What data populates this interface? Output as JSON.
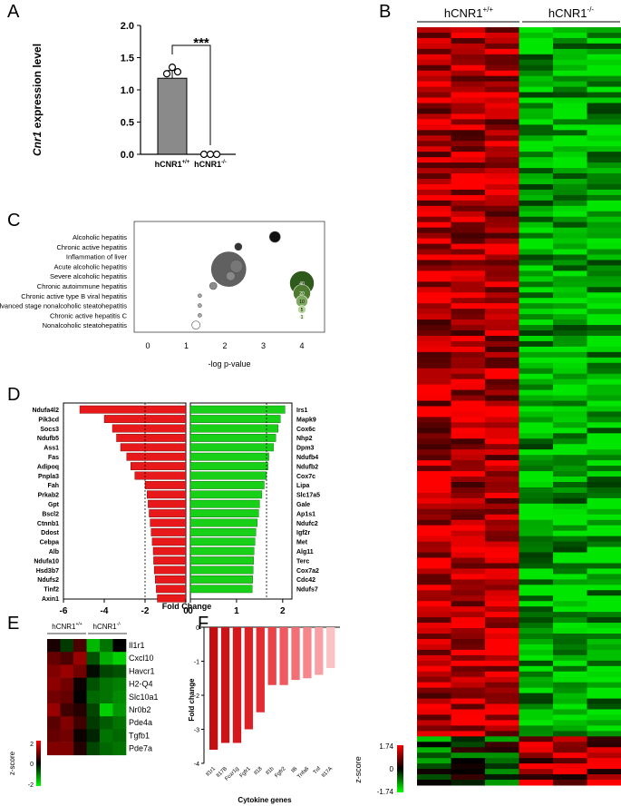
{
  "panels": {
    "A": "A",
    "B": "B",
    "C": "C",
    "D": "D",
    "E": "E",
    "F": "F"
  },
  "colors": {
    "red": "#e8191b",
    "green": "#19d019",
    "gray": "#8a8a8a",
    "dark_green": "#2e5a1c"
  },
  "panel_a": {
    "ylabel_italic": "Cnr1",
    "ylabel_rest": " expression level",
    "significance": "***",
    "yticks": [
      "0.0",
      "0.5",
      "1.0",
      "1.5",
      "2.0"
    ],
    "categories": [
      {
        "base": "hCNR1",
        "sup": "+/+"
      },
      {
        "base": "hCNR1",
        "sup": "-/-"
      }
    ]
  },
  "panel_b": {
    "groups": [
      {
        "base": "hCNR1",
        "sup": "+/+"
      },
      {
        "base": "hCNR1",
        "sup": "-/-"
      }
    ],
    "scale_max": "1.74",
    "scale_mid": "0",
    "scale_min": "-1.74",
    "scale_label": "z-score"
  },
  "panel_c": {
    "terms": [
      "Alcoholic hepatitis",
      "Chronic active hepatitis",
      "Inflammation of liver",
      "Acute alcoholic hepatitis",
      "Severe alcoholic hepatitis",
      "Chronic autoimmune hepatitis",
      "Chronic active type B viral hepatitis",
      "Advanced stage nonalcoholic steatohepatitis",
      "Chronic active hepatitis C",
      "Nonalcoholic steatohepatitis"
    ],
    "xticks": [
      "0",
      "1",
      "2",
      "3",
      "4"
    ],
    "xlabel": "-log p-value",
    "size_legend": [
      "40",
      "20",
      "10",
      "5",
      "1"
    ]
  },
  "panel_d": {
    "xlabel": "Fold Change",
    "left_ticks": [
      "-6",
      "-4",
      "-2",
      "0"
    ],
    "right_ticks": [
      "0",
      "1",
      "2"
    ],
    "down_genes": [
      "Ndufa4l2",
      "Pik3cd",
      "Socs3",
      "Ndufb5",
      "Ass1",
      "Fas",
      "Adipoq",
      "Pnpla3",
      "Fah",
      "Prkab2",
      "Gpt",
      "Bscl2",
      "Ctnnb1",
      "Ddost",
      "Cebpa",
      "Alb",
      "Ndufa10",
      "Hsd3b7",
      "Ndufs2",
      "Tinf2",
      "Axin1"
    ],
    "up_genes": [
      "Irs1",
      "Mapk9",
      "Cox6c",
      "Nhp2",
      "Dpm3",
      "Ndufb4",
      "Ndufb2",
      "Cox7c",
      "Lipa",
      "Slc17a5",
      "Gale",
      "Ap1s1",
      "Ndufc2",
      "Igf2r",
      "Met",
      "Alg11",
      "Terc",
      "Cox7a2",
      "Cdc42",
      "Ndufs7"
    ]
  },
  "panel_e": {
    "groups": [
      {
        "base": "hCNR1",
        "sup": "+/+"
      },
      {
        "base": "hCNR1",
        "sup": "-/-"
      }
    ],
    "genes": [
      "Il1r1",
      "Cxcl10",
      "Havcr1",
      "H2-Q4",
      "Slc10a1",
      "Nr0b2",
      "Pde4a",
      "Tgfb1",
      "Pde7a"
    ],
    "scale_max": "2",
    "scale_mid": "0",
    "scale_min": "-2",
    "scale_label": "z-score"
  },
  "panel_f": {
    "ylabel": "Fold change",
    "xlabel": "Cytokine genes",
    "yticks": [
      "0",
      "-1",
      "-2",
      "-3",
      "-4"
    ],
    "ylim": [
      -4,
      0
    ]
  },
  "chart_data": [
    {
      "type": "bar",
      "panel": "A",
      "categories": [
        "hCNR1+/+",
        "hCNR1-/-"
      ],
      "values": [
        1.18,
        0.0
      ],
      "points": [
        [
          1.25,
          1.35,
          1.28
        ],
        [
          0.0,
          0.0,
          0.0
        ]
      ],
      "ylim": [
        0,
        2.0
      ]
    },
    {
      "type": "scatter",
      "panel": "C",
      "xlim": [
        0,
        4.5
      ],
      "points": [
        {
          "term": "Alcoholic hepatitis",
          "x": 3.3,
          "size": 12,
          "color": "#111111"
        },
        {
          "term": "Chronic active hepatitis",
          "x": 2.35,
          "size": 8,
          "color": "#333333"
        },
        {
          "term": "Inflammation of liver",
          "x": 2.1,
          "size": 38,
          "color": "#444444"
        },
        {
          "term": "Acute alcoholic hepatitis",
          "x": 2.3,
          "size": 14,
          "color": "#777777"
        },
        {
          "term": "Severe alcoholic hepatitis",
          "x": 2.15,
          "size": 10,
          "color": "#888888"
        },
        {
          "term": "Chronic autoimmune hepatitis",
          "x": 1.7,
          "size": 8,
          "color": "#8c8c8c"
        },
        {
          "term": "Chronic active type B viral hepatitis",
          "x": 1.35,
          "size": 4,
          "color": "#aaaaaa"
        },
        {
          "term": "Advanced stage nonalcoholic steatohepatitis",
          "x": 1.35,
          "size": 4,
          "color": "#aaaaaa"
        },
        {
          "term": "Chronic active hepatitis C",
          "x": 1.35,
          "size": 4,
          "color": "#aaaaaa"
        },
        {
          "term": "Nonalcoholic steatohepatitis",
          "x": 1.25,
          "size": 9,
          "color": "#ffffff"
        }
      ]
    },
    {
      "type": "bar",
      "panel": "D",
      "down_values": [
        -5.2,
        -4.0,
        -3.6,
        -3.4,
        -3.2,
        -2.9,
        -2.7,
        -2.5,
        -2.0,
        -1.9,
        -1.85,
        -1.8,
        -1.75,
        -1.7,
        -1.65,
        -1.6,
        -1.58,
        -1.55,
        -1.5,
        -1.45,
        -1.4
      ],
      "up_values": [
        2.05,
        1.95,
        1.9,
        1.85,
        1.8,
        1.7,
        1.68,
        1.65,
        1.6,
        1.55,
        1.5,
        1.48,
        1.45,
        1.42,
        1.4,
        1.38,
        1.37,
        1.36,
        1.35,
        1.34
      ],
      "left_xlim": [
        -6,
        0
      ],
      "right_xlim": [
        0,
        2.25
      ],
      "thresholds": [
        -2.0,
        1.65
      ]
    },
    {
      "type": "heatmap",
      "panel": "E",
      "zlim": [
        -2,
        2
      ],
      "rows": [
        [
          0.2,
          -0.5,
          0.6,
          -1.6,
          -1.0,
          0.0
        ],
        [
          0.8,
          0.6,
          1.2,
          -0.7,
          -1.5,
          -1.8
        ],
        [
          1.0,
          1.2,
          0.9,
          -0.1,
          -0.6,
          -0.7
        ],
        [
          1.1,
          0.9,
          0.1,
          -0.7,
          -1.0,
          -1.1
        ],
        [
          0.9,
          0.8,
          0.0,
          -0.9,
          -1.0,
          -1.2
        ],
        [
          1.2,
          0.5,
          0.3,
          -0.6,
          -1.8,
          -1.3
        ],
        [
          0.7,
          1.0,
          0.5,
          -0.5,
          -0.8,
          -1.0
        ],
        [
          0.8,
          0.9,
          0.1,
          -0.3,
          -1.0,
          -0.9
        ],
        [
          1.0,
          1.0,
          0.3,
          -0.6,
          -0.9,
          -1.0
        ]
      ]
    },
    {
      "type": "bar",
      "panel": "F",
      "categories": [
        "Il1r1",
        "Il17B",
        "Foxr1g",
        "Fgfr1",
        "Il18",
        "Il1b",
        "Fgfr2",
        "Il6",
        "Tnfa6",
        "Tnf",
        "Il17A"
      ],
      "values": [
        -3.6,
        -3.4,
        -3.4,
        -3.0,
        -2.5,
        -1.7,
        -1.7,
        -1.55,
        -1.5,
        -1.4,
        -1.2
      ],
      "ylim": [
        -4,
        0
      ]
    }
  ]
}
